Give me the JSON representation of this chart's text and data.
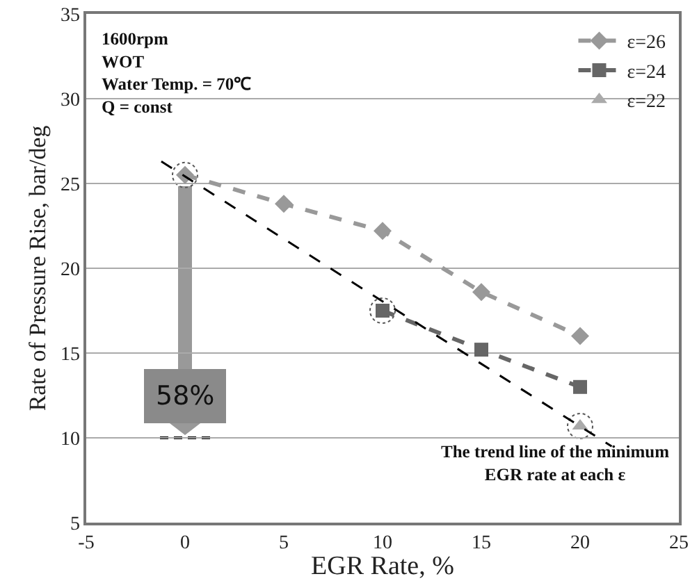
{
  "chart_data": {
    "type": "line",
    "xlabel": "EGR Rate, %",
    "ylabel": "Rate of Pressure Rise, bar/deg",
    "xlim": [
      -5,
      25
    ],
    "xticks": [
      -5,
      0,
      5,
      10,
      15,
      20,
      25
    ],
    "ylim": [
      5,
      35
    ],
    "yticks": [
      5,
      10,
      15,
      20,
      25,
      30,
      35
    ],
    "grid": "y",
    "legend": "top right",
    "line_style": "dashed",
    "series": [
      {
        "name": "ε=26",
        "color": "#999999",
        "marker": "diamond",
        "x": [
          0,
          5,
          10,
          15,
          20
        ],
        "values": [
          25.5,
          23.8,
          22.2,
          18.6,
          16.0
        ]
      },
      {
        "name": "ε=24",
        "color": "#666666",
        "marker": "square",
        "x": [
          10,
          15,
          20
        ],
        "values": [
          17.5,
          15.2,
          13.0
        ]
      },
      {
        "name": "ε=22",
        "color": "#aaaaaa",
        "marker": "triangle",
        "line_style": "none",
        "x": [
          20
        ],
        "values": [
          10.7
        ]
      },
      {
        "type": "line",
        "color": "#000000",
        "marker": "none",
        "x": [
          -1.2,
          21.6
        ],
        "values": [
          26.3,
          9.5
        ]
      }
    ],
    "annotations": [
      "1600rpm\nWOT\nWater Temp. = 70℃\nQ = const",
      "58%",
      "The trend line of the minimum\nEGR rate at each ε"
    ]
  }
}
